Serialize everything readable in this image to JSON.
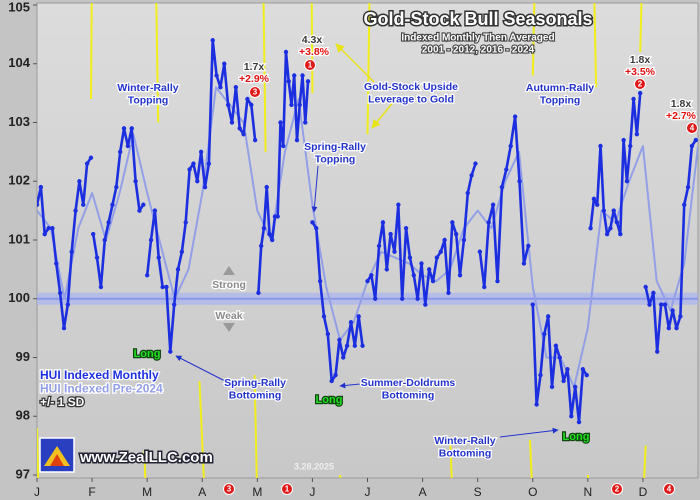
{
  "chart_data": {
    "type": "line",
    "title": "Gold-Stock Bull Seasonals",
    "subtitle": [
      "Indexed Monthly Then Averaged",
      "2001 - 2012, 2016 - 2024"
    ],
    "ylim": [
      97,
      105
    ],
    "yticks": [
      97,
      98,
      99,
      100,
      101,
      102,
      103,
      104,
      105
    ],
    "xlim": [
      0,
      12
    ],
    "xticks": [
      {
        "value": 0,
        "label": "J"
      },
      {
        "value": 1,
        "label": "F"
      },
      {
        "value": 2,
        "label": "M"
      },
      {
        "value": 3,
        "label": "A"
      },
      {
        "value": 4,
        "label": "M"
      },
      {
        "value": 5,
        "label": "J"
      },
      {
        "value": 6,
        "label": "J"
      },
      {
        "value": 7,
        "label": "A"
      },
      {
        "value": 8,
        "label": "S"
      },
      {
        "value": 9,
        "label": "O"
      },
      {
        "value": 10,
        "label": "N"
      },
      {
        "value": 11,
        "label": "D"
      }
    ],
    "grid": false,
    "reference_line": 100,
    "legend": "lower-left",
    "series": [
      {
        "name": "+/- 1 SD",
        "color": "#f2ee1c",
        "x": [
          0,
          0.03,
          0.03,
          0.98,
          1.0,
          1.0,
          1.95,
          1.98,
          1.98,
          2.15,
          2.2,
          2.2,
          2.95,
          3.05,
          3.05,
          3.95,
          4.0,
          4.0,
          4.1,
          4.15,
          4.15,
          4.98,
          5.0,
          5.0,
          5.5,
          5.6,
          5.6,
          6.0,
          6.05,
          6.05,
          7.5,
          7.55,
          7.55,
          8.95,
          9.0,
          9.0,
          9.0,
          9.05,
          9.05,
          10.0,
          10.05,
          10.05,
          10.1,
          10.15,
          10.15,
          10.95,
          11.0,
          11.0,
          11.0,
          11.05
        ],
        "values": [
          97.8,
          96.5,
          null,
          103.4,
          106,
          null,
          97.4,
          96.5,
          null,
          106,
          103.0,
          null,
          98.6,
          96.5,
          null,
          98.7,
          96.5,
          null,
          106,
          102.5,
          null,
          106,
          103.5,
          null,
          97.0,
          96.5,
          null,
          102.8,
          106,
          null,
          97.6,
          96.5,
          null,
          97.6,
          96.5,
          null,
          103.8,
          106,
          null,
          97.0,
          96.5,
          null,
          106,
          103.6,
          null,
          104.2,
          106,
          null,
          96.5,
          97.5
        ]
      },
      {
        "name": "HUI Indexed Pre-2024",
        "color": "#939fe6",
        "x": [
          0,
          0.25,
          0.5,
          0.75,
          1,
          1.25,
          1.5,
          1.75,
          2,
          2.25,
          2.5,
          2.75,
          3,
          3.25,
          3.5,
          3.75,
          4,
          4.25,
          4.5,
          4.75,
          5,
          5.25,
          5.5,
          5.75,
          6,
          6.25,
          6.5,
          6.75,
          7,
          7.25,
          7.5,
          7.75,
          8,
          8.25,
          8.5,
          8.75,
          9,
          9.25,
          9.5,
          9.75,
          10,
          10.25,
          10.5,
          10.75,
          11,
          11.25,
          11.5,
          11.75,
          12
        ],
        "values": [
          101.5,
          101.2,
          100.0,
          101.2,
          101.8,
          101.0,
          101.8,
          102.8,
          101.8,
          100.9,
          100.0,
          100.5,
          101.8,
          103.6,
          103.3,
          103.0,
          101.5,
          101.0,
          102.5,
          103.4,
          101.6,
          100.2,
          99.3,
          99.6,
          100.3,
          100.8,
          100.7,
          100.6,
          100.4,
          100.3,
          100.5,
          101.2,
          101.5,
          101.2,
          102.0,
          102.5,
          100.2,
          99.0,
          99.0,
          98.5,
          99.5,
          101.5,
          101.3,
          102.0,
          102.6,
          100.3,
          99.8,
          100.6,
          102.6
        ]
      },
      {
        "name": "HUI Indexed Monthly",
        "color": "#1c2fe0",
        "x": [
          0,
          0.07,
          0.14,
          0.21,
          0.28,
          0.35,
          0.42,
          0.49,
          0.56,
          0.63,
          0.7,
          0.77,
          0.84,
          0.91,
          0.98,
          1.0,
          1.02,
          1.09,
          1.16,
          1.23,
          1.3,
          1.37,
          1.44,
          1.51,
          1.58,
          1.65,
          1.72,
          1.79,
          1.86,
          1.93,
          1.96,
          2,
          2.07,
          2.14,
          2.21,
          2.28,
          2.35,
          2.42,
          2.49,
          2.56,
          2.63,
          2.7,
          2.77,
          2.84,
          2.91,
          2.98,
          3.05,
          3.12,
          3.19,
          3.26,
          3.33,
          3.4,
          3.47,
          3.54,
          3.61,
          3.68,
          3.75,
          3.82,
          3.89,
          3.96,
          3.99,
          4.02,
          4.07,
          4.12,
          4.17,
          4.22,
          4.27,
          4.32,
          4.37,
          4.42,
          4.47,
          4.52,
          4.57,
          4.62,
          4.67,
          4.72,
          4.77,
          4.82,
          4.87,
          4.92,
          4.96,
          5,
          5.07,
          5.14,
          5.21,
          5.28,
          5.35,
          5.42,
          5.49,
          5.56,
          5.63,
          5.7,
          5.77,
          5.84,
          5.91,
          5.95,
          6,
          6.07,
          6.14,
          6.21,
          6.28,
          6.35,
          6.42,
          6.49,
          6.56,
          6.63,
          6.7,
          6.77,
          6.84,
          6.91,
          6.98,
          7.05,
          7.12,
          7.19,
          7.26,
          7.33,
          7.4,
          7.47,
          7.54,
          7.61,
          7.68,
          7.75,
          7.82,
          7.89,
          7.96,
          7.99,
          8.04,
          8.12,
          8.2,
          8.28,
          8.36,
          8.44,
          8.52,
          8.6,
          8.68,
          8.76,
          8.84,
          8.92,
          8.96,
          9,
          9.07,
          9.14,
          9.21,
          9.28,
          9.35,
          9.42,
          9.49,
          9.56,
          9.63,
          9.7,
          9.77,
          9.84,
          9.91,
          9.98,
          10.01,
          10.05,
          10.11,
          10.17,
          10.23,
          10.29,
          10.35,
          10.41,
          10.47,
          10.53,
          10.59,
          10.65,
          10.71,
          10.77,
          10.83,
          10.89,
          10.95,
          10.99,
          11.05,
          11.12,
          11.19,
          11.26,
          11.33,
          11.4,
          11.47,
          11.54,
          11.61,
          11.68,
          11.75,
          11.82,
          11.89,
          11.96
        ],
        "values": [
          101.6,
          101.9,
          101.1,
          101.2,
          101.2,
          100.6,
          100.1,
          99.5,
          99.9,
          100.8,
          101.5,
          102.0,
          101.6,
          102.3,
          102.4,
          null,
          101.1,
          100.7,
          100.2,
          101.0,
          101.3,
          101.6,
          101.9,
          102.5,
          102.9,
          102.6,
          102.9,
          102.0,
          101.5,
          101.6,
          null,
          100.4,
          101.0,
          101.5,
          100.7,
          100.2,
          100.2,
          99.1,
          99.9,
          100.5,
          100.8,
          101.3,
          102.2,
          102.3,
          102.0,
          102.5,
          101.9,
          102.3,
          104.4,
          103.8,
          103.6,
          104.0,
          103.3,
          103.0,
          103.6,
          102.9,
          102.8,
          103.4,
          103.3,
          102.7,
          null,
          100.1,
          100.9,
          101.2,
          101.9,
          101.1,
          101.0,
          101.4,
          101.4,
          103.0,
          102.6,
          104.2,
          103.7,
          103.3,
          103.8,
          102.7,
          103.3,
          103.8,
          103.0,
          103.7,
          null,
          101.3,
          101.2,
          100.3,
          99.7,
          99.4,
          98.6,
          98.7,
          99.3,
          99.0,
          99.2,
          99.6,
          99.2,
          99.7,
          99.2,
          null,
          100.3,
          100.4,
          100.0,
          100.9,
          101.3,
          100.5,
          101.1,
          100.8,
          101.6,
          100.0,
          101.2,
          100.7,
          100.4,
          100.0,
          100.6,
          99.9,
          100.5,
          100.3,
          100.7,
          100.8,
          101.0,
          100.1,
          101.3,
          101.1,
          100.4,
          101.0,
          101.8,
          102.1,
          102.3,
          null,
          100.8,
          100.2,
          101.3,
          101.6,
          100.3,
          101.9,
          102.2,
          102.6,
          103.1,
          102.0,
          100.6,
          100.9,
          null,
          99.9,
          98.2,
          98.7,
          99.4,
          99.7,
          98.5,
          99.2,
          99.0,
          98.6,
          98.8,
          98.0,
          98.5,
          97.9,
          98.8,
          98.7,
          null,
          101.2,
          101.7,
          101.6,
          102.6,
          101.5,
          101.1,
          101.2,
          101.5,
          101.3,
          101.1,
          102.7,
          102.0,
          102.6,
          103.4,
          102.8,
          103.5,
          null,
          100.2,
          99.9,
          100.1,
          99.1,
          99.9,
          99.9,
          99.5,
          99.8,
          99.5,
          99.7,
          101.6,
          101.9,
          102.6,
          102.7
        ]
      }
    ],
    "annotations": [
      {
        "lines": [
          "Winter-Rally",
          "Topping"
        ],
        "color": "#2233cc"
      },
      {
        "lines": [
          "1.7x"
        ],
        "color": "#3a3a3a"
      },
      {
        "lines": [
          "+2.9%"
        ],
        "color": "#e01010"
      },
      {
        "lines": [
          "4.3x"
        ],
        "color": "#3a3a3a"
      },
      {
        "lines": [
          "+3.8%"
        ],
        "color": "#e01010"
      },
      {
        "lines": [
          "Spring-Rally",
          "Topping"
        ],
        "color": "#2233cc"
      },
      {
        "lines": [
          "Gold-Stock Upside",
          "Leverage to Gold"
        ],
        "color": "#2233cc"
      },
      {
        "lines": [
          "Autumn-Rally",
          "Topping"
        ],
        "color": "#2233cc"
      },
      {
        "lines": [
          "1.8x"
        ],
        "color": "#3a3a3a"
      },
      {
        "lines": [
          "+3.5%"
        ],
        "color": "#e01010"
      },
      {
        "lines": [
          "1.8x"
        ],
        "color": "#3a3a3a"
      },
      {
        "lines": [
          "+2.7%"
        ],
        "color": "#e01010"
      },
      {
        "lines": [
          "Strong"
        ],
        "color": "#8a8a8a"
      },
      {
        "lines": [
          "Weak"
        ],
        "color": "#8a8a8a"
      },
      {
        "lines": [
          "Long"
        ],
        "color": "#22e022"
      },
      {
        "lines": [
          "Long"
        ],
        "color": "#22e022"
      },
      {
        "lines": [
          "Long"
        ],
        "color": "#22e022"
      },
      {
        "lines": [
          "Spring-Rally",
          "Bottoming"
        ],
        "color": "#2233cc"
      },
      {
        "lines": [
          "Summer-Doldrums",
          "Bottoming"
        ],
        "color": "#2233cc"
      },
      {
        "lines": [
          "Winter-Rally",
          "Bottoming"
        ],
        "color": "#2233cc"
      },
      {
        "lines": [
          "3.28.2025"
        ],
        "color": "#eeeeee"
      }
    ],
    "circle_markers": [
      "3",
      "1",
      "2",
      "4",
      "3",
      "1",
      "2",
      "4"
    ],
    "website": "www.ZealLLC.com"
  }
}
